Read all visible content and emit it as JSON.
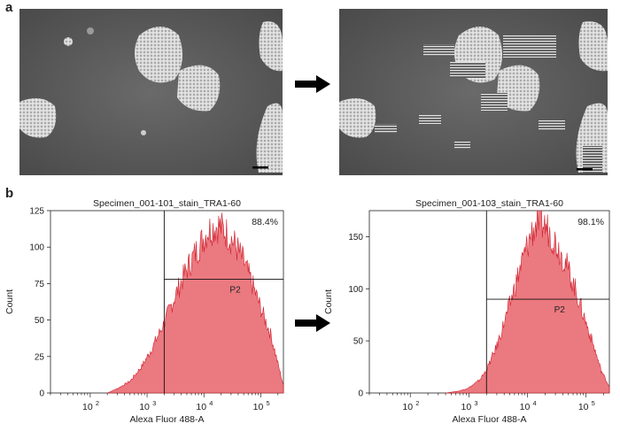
{
  "panels": {
    "a_label": "a",
    "b_label": "b"
  },
  "chart_data": [
    {
      "type": "area",
      "title": "Specimen_001-101_stain_TRA1-60",
      "xlabel": "Alexa Fluor 488-A",
      "ylabel": "Count",
      "x_scale": "log",
      "xlim": [
        20,
        250000
      ],
      "ylim": [
        0,
        125
      ],
      "y_ticks": [
        0,
        25,
        50,
        75,
        100,
        125
      ],
      "x_tick_labels": [
        {
          "value": 100,
          "base": "10",
          "exp": "2"
        },
        {
          "value": 1000,
          "base": "10",
          "exp": "3"
        },
        {
          "value": 10000,
          "base": "10",
          "exp": "4"
        },
        {
          "value": 100000,
          "base": "10",
          "exp": "5"
        }
      ],
      "gate": {
        "name": "P2",
        "x_min": 2000,
        "level": 78,
        "percent": "88.4%"
      },
      "x": [
        200,
        300,
        500,
        800,
        1200,
        2000,
        3000,
        5000,
        8000,
        12000,
        18000,
        25000,
        35000,
        50000,
        70000,
        100000,
        150000,
        200000,
        250000
      ],
      "values": [
        0,
        3,
        8,
        18,
        30,
        48,
        65,
        85,
        100,
        112,
        115,
        110,
        102,
        90,
        75,
        58,
        40,
        20,
        5
      ],
      "color": "#e8626a"
    },
    {
      "type": "area",
      "title": "Specimen_001-103_stain_TRA1-60",
      "xlabel": "Alexa Fluor 488-A",
      "ylabel": "Count",
      "x_scale": "log",
      "xlim": [
        20,
        250000
      ],
      "ylim": [
        0,
        175
      ],
      "y_ticks": [
        0,
        50,
        100,
        150
      ],
      "x_tick_labels": [
        {
          "value": 100,
          "base": "10",
          "exp": "2"
        },
        {
          "value": 1000,
          "base": "10",
          "exp": "3"
        },
        {
          "value": 10000,
          "base": "10",
          "exp": "4"
        },
        {
          "value": 100000,
          "base": "10",
          "exp": "5"
        }
      ],
      "gate": {
        "name": "P2",
        "x_min": 2000,
        "level": 90,
        "percent": "98.1%"
      },
      "x": [
        400,
        700,
        1000,
        1500,
        2000,
        3000,
        5000,
        8000,
        12000,
        16000,
        22000,
        30000,
        45000,
        65000,
        90000,
        130000,
        180000,
        250000
      ],
      "values": [
        0,
        2,
        5,
        12,
        22,
        45,
        85,
        125,
        155,
        165,
        158,
        145,
        125,
        100,
        75,
        48,
        22,
        6
      ],
      "color": "#e8626a"
    }
  ]
}
